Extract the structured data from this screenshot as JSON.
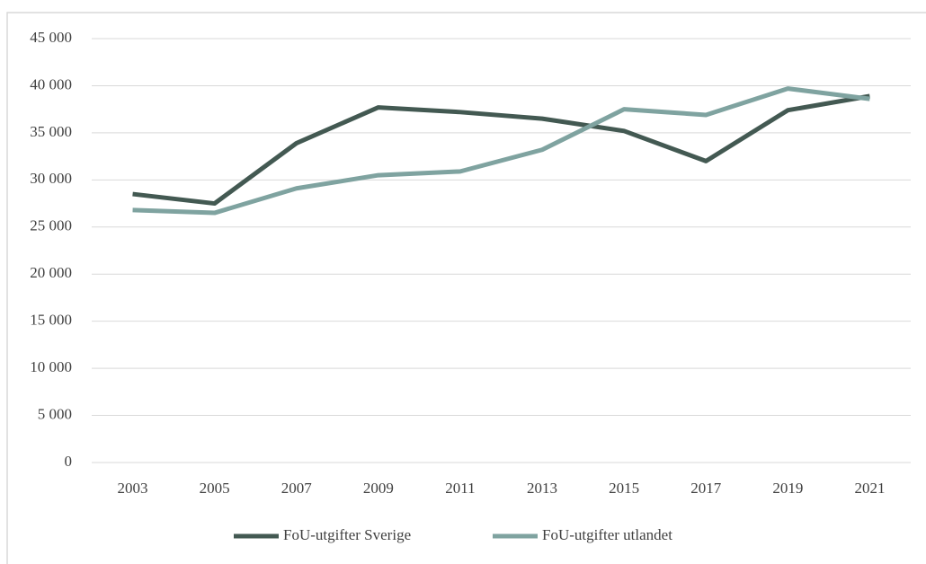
{
  "chart_data": {
    "type": "line",
    "categories": [
      "2003",
      "2005",
      "2007",
      "2009",
      "2011",
      "2013",
      "2015",
      "2017",
      "2019",
      "2021"
    ],
    "series": [
      {
        "name": "FoU-utgifter Sverige",
        "color": "#435952",
        "values": [
          28500,
          27500,
          33900,
          37700,
          37200,
          36500,
          35200,
          32000,
          37400,
          38900
        ]
      },
      {
        "name": "FoU-utgifter utlandet",
        "color": "#7fa3a0",
        "values": [
          26800,
          26500,
          29100,
          30500,
          30900,
          33200,
          37500,
          36900,
          39700,
          38600
        ]
      }
    ],
    "ylim": [
      0,
      45000
    ],
    "yticks": [
      0,
      {
        "value": 5000,
        "label": "5 000"
      },
      {
        "value": 10000,
        "label": "10 000"
      },
      {
        "value": 15000,
        "label": "15 000"
      },
      {
        "value": 20000,
        "label": "20 000"
      },
      {
        "value": 25000,
        "label": "25 000"
      },
      {
        "value": 30000,
        "label": "30 000"
      },
      {
        "value": 35000,
        "label": "35 000"
      },
      {
        "value": 40000,
        "label": "40 000"
      },
      {
        "value": 45000,
        "label": "45 000"
      }
    ],
    "grid": true,
    "legend": "bottom"
  }
}
